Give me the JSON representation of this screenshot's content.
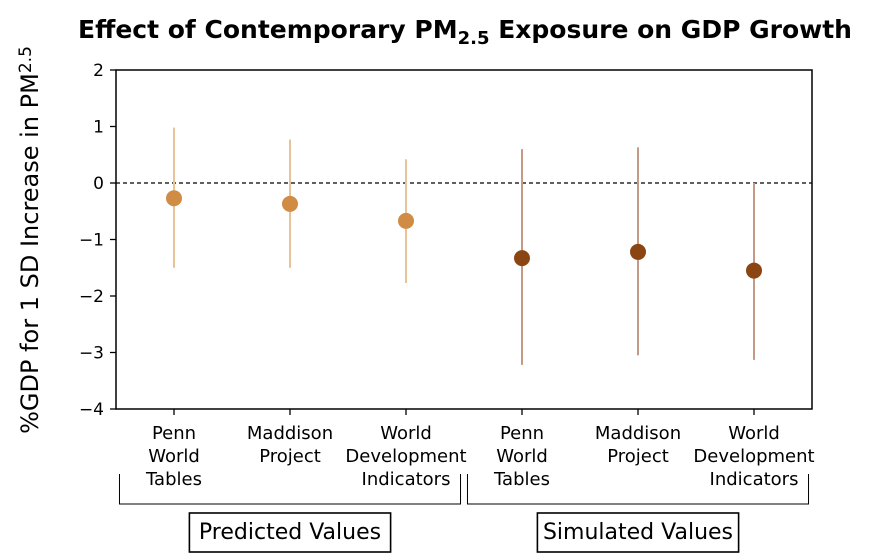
{
  "chart_data": {
    "type": "scatter",
    "title_main": "Effect of Contemporary PM",
    "title_sub": "2.5",
    "title_rest": " Exposure on GDP Growth",
    "ylabel_main": "%GDP for 1 SD Increase in PM",
    "ylabel_sub": "2.5",
    "ylim": [
      -4,
      2
    ],
    "yticks": [
      2,
      1,
      0,
      -1,
      -2,
      -3,
      -4
    ],
    "ytick_labels": [
      "2",
      "1",
      "0",
      "−1",
      "−2",
      "−3",
      "−4"
    ],
    "reference_line": 0,
    "categories": [
      [
        "Penn",
        "World",
        "Tables"
      ],
      [
        "Maddison",
        "Project"
      ],
      [
        "World",
        "Development",
        "Indicators"
      ],
      [
        "Penn",
        "World",
        "Tables"
      ],
      [
        "Maddison",
        "Project"
      ],
      [
        "World",
        "Development",
        "Indicators"
      ]
    ],
    "groups": [
      {
        "label": "Predicted Values",
        "indices": [
          0,
          1,
          2
        ]
      },
      {
        "label": "Simulated Values",
        "indices": [
          3,
          4,
          5
        ]
      }
    ],
    "series": [
      {
        "values": [
          -0.27,
          -0.37,
          -0.67
        ],
        "lower": [
          -1.5,
          -1.5,
          -1.77
        ],
        "upper": [
          0.98,
          0.77,
          0.42
        ],
        "indices": [
          0,
          1,
          2
        ],
        "point_color": "#d08b45",
        "bar_color": "#e8c39a"
      },
      {
        "values": [
          -1.33,
          -1.22,
          -1.55
        ],
        "lower": [
          -3.22,
          -3.05,
          -3.13
        ],
        "upper": [
          0.6,
          0.63,
          0.0
        ],
        "indices": [
          3,
          4,
          5
        ],
        "point_color": "#8b4513",
        "bar_color": "#c49a86"
      }
    ],
    "grid": false
  }
}
